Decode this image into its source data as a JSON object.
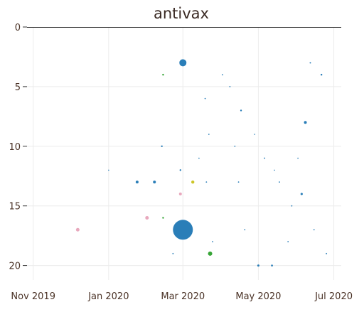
{
  "chart_data": {
    "type": "scatter",
    "title": "antivax",
    "xlabel": "",
    "ylabel": "",
    "x_axis": {
      "type": "date",
      "range": [
        "2019-10-27",
        "2020-07-07"
      ],
      "ticks": [
        {
          "label": "Nov 2019",
          "date": "2019-11-01"
        },
        {
          "label": "Jan 2020",
          "date": "2020-01-01"
        },
        {
          "label": "Mar 2020",
          "date": "2020-03-01"
        },
        {
          "label": "May 2020",
          "date": "2020-05-01"
        },
        {
          "label": "Jul 2020",
          "date": "2020-07-01"
        }
      ]
    },
    "y_axis": {
      "range": [
        0,
        20.5
      ],
      "reversed": true,
      "ticks": [
        {
          "label": "0",
          "value": 0
        },
        {
          "label": "5",
          "value": 5
        },
        {
          "label": "10",
          "value": 10
        },
        {
          "label": "15",
          "value": 15
        },
        {
          "label": "20",
          "value": 20
        }
      ]
    },
    "grid": true,
    "colors": {
      "blue": "#1f77b4",
      "pink": "#e7a3b9",
      "green": "#2ca02c",
      "yellow": "#c9c21a",
      "axis": "#333333",
      "text": "#4a3226"
    },
    "points": [
      {
        "date": "2020-03-01",
        "y": 17,
        "size": 14,
        "color": "blue"
      },
      {
        "date": "2020-03-01",
        "y": 3,
        "size": 5,
        "color": "blue"
      },
      {
        "date": "2019-12-07",
        "y": 17,
        "size": 2.5,
        "color": "pink"
      },
      {
        "date": "2020-02-01",
        "y": 16,
        "size": 2.5,
        "color": "pink"
      },
      {
        "date": "2020-02-28",
        "y": 14,
        "size": 2,
        "color": "pink"
      },
      {
        "date": "2020-03-23",
        "y": 19,
        "size": 3,
        "color": "green"
      },
      {
        "date": "2020-03-09",
        "y": 13,
        "size": 2.2,
        "color": "yellow"
      },
      {
        "date": "2020-01-24",
        "y": 13,
        "size": 2,
        "color": "blue"
      },
      {
        "date": "2020-02-07",
        "y": 13,
        "size": 2,
        "color": "blue"
      },
      {
        "date": "2020-06-08",
        "y": 8,
        "size": 2,
        "color": "blue"
      },
      {
        "date": "2020-06-05",
        "y": 14,
        "size": 1.6,
        "color": "blue"
      },
      {
        "date": "2020-02-14",
        "y": 4,
        "size": 1.2,
        "color": "green"
      },
      {
        "date": "2020-02-14",
        "y": 16,
        "size": 1.2,
        "color": "green"
      },
      {
        "date": "2020-02-13",
        "y": 10,
        "size": 1.2,
        "color": "blue"
      },
      {
        "date": "2020-02-28",
        "y": 12,
        "size": 1.2,
        "color": "blue"
      },
      {
        "date": "2020-04-17",
        "y": 7,
        "size": 1.2,
        "color": "blue"
      },
      {
        "date": "2020-06-21",
        "y": 4,
        "size": 1.2,
        "color": "blue"
      },
      {
        "date": "2020-05-01",
        "y": 20,
        "size": 1.5,
        "color": "blue"
      },
      {
        "date": "2020-05-12",
        "y": 20,
        "size": 1.3,
        "color": "blue"
      },
      {
        "date": "2020-06-12",
        "y": 3,
        "size": 1,
        "color": "blue"
      },
      {
        "date": "2020-04-02",
        "y": 4,
        "size": 0.9,
        "color": "blue"
      },
      {
        "date": "2020-04-08",
        "y": 5,
        "size": 0.9,
        "color": "blue"
      },
      {
        "date": "2020-03-19",
        "y": 6,
        "size": 0.9,
        "color": "blue"
      },
      {
        "date": "2020-03-22",
        "y": 9,
        "size": 0.9,
        "color": "blue"
      },
      {
        "date": "2020-04-12",
        "y": 10,
        "size": 0.9,
        "color": "blue"
      },
      {
        "date": "2020-05-06",
        "y": 11,
        "size": 0.9,
        "color": "blue"
      },
      {
        "date": "2020-03-20",
        "y": 13,
        "size": 0.9,
        "color": "blue"
      },
      {
        "date": "2020-04-15",
        "y": 13,
        "size": 0.9,
        "color": "blue"
      },
      {
        "date": "2020-05-18",
        "y": 13,
        "size": 0.9,
        "color": "blue"
      },
      {
        "date": "2020-05-28",
        "y": 15,
        "size": 0.9,
        "color": "blue"
      },
      {
        "date": "2020-04-20",
        "y": 17,
        "size": 0.9,
        "color": "blue"
      },
      {
        "date": "2020-03-25",
        "y": 18,
        "size": 0.9,
        "color": "blue"
      },
      {
        "date": "2020-05-25",
        "y": 18,
        "size": 0.9,
        "color": "blue"
      },
      {
        "date": "2020-06-15",
        "y": 17,
        "size": 0.9,
        "color": "blue"
      },
      {
        "date": "2020-06-25",
        "y": 19,
        "size": 0.9,
        "color": "blue"
      },
      {
        "date": "2020-02-22",
        "y": 19,
        "size": 0.9,
        "color": "blue"
      },
      {
        "date": "2020-01-01",
        "y": 12,
        "size": 0.8,
        "color": "blue"
      },
      {
        "date": "2020-03-14",
        "y": 11,
        "size": 0.8,
        "color": "blue"
      },
      {
        "date": "2020-04-28",
        "y": 9,
        "size": 0.8,
        "color": "blue"
      },
      {
        "date": "2020-05-14",
        "y": 12,
        "size": 0.8,
        "color": "blue"
      },
      {
        "date": "2020-06-02",
        "y": 11,
        "size": 0.8,
        "color": "blue"
      }
    ]
  }
}
